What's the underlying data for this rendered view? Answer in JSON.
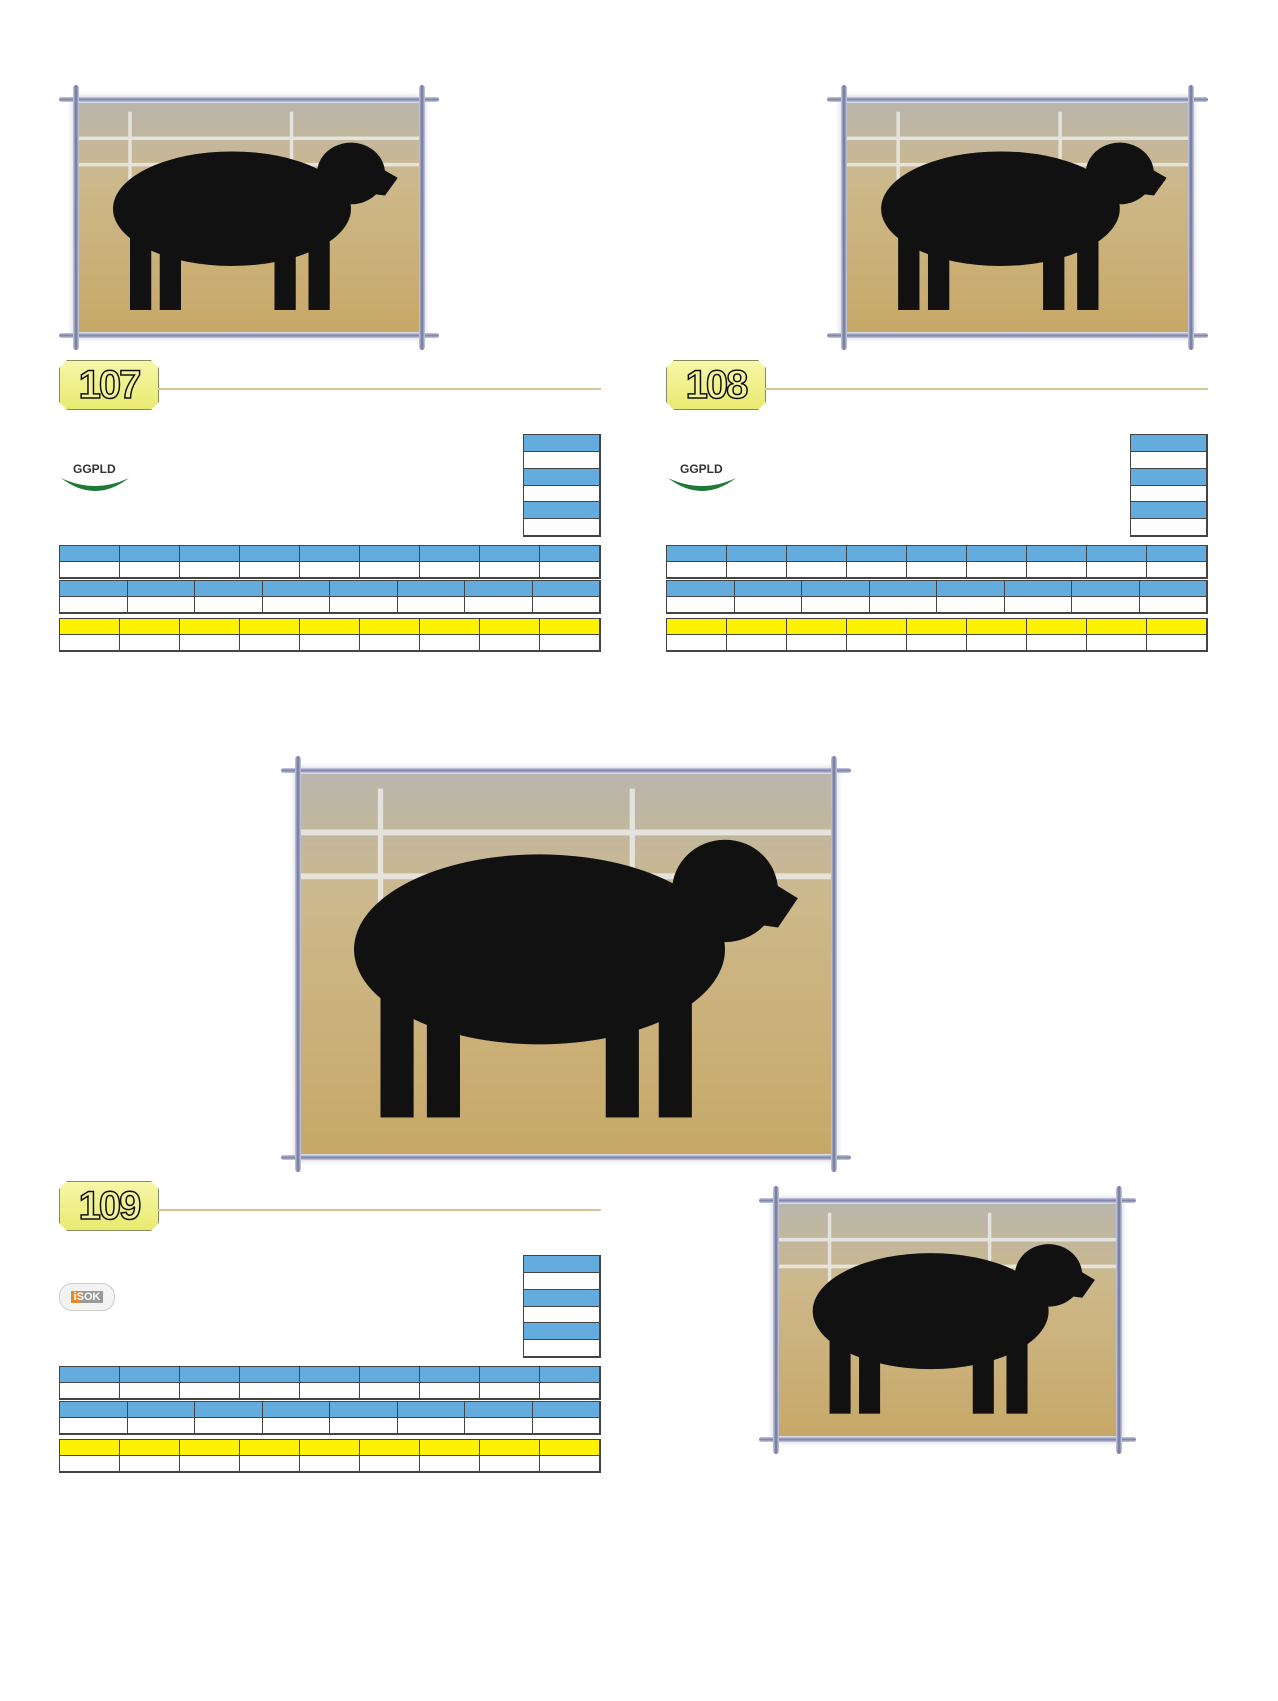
{
  "lots": [
    {
      "lot_number": "107",
      "logo_text": "GGPLD",
      "logo_type": "ggpld"
    },
    {
      "lot_number": "108",
      "logo_text": "GGPLD",
      "logo_type": "ggpld"
    },
    {
      "lot_number": "109",
      "logo_text": "iSOK",
      "logo_type": "isok"
    }
  ],
  "colors": {
    "header_blue": "#64acde",
    "header_yellow": "#fff200",
    "badge": "#f0f08a",
    "rule": "#d8c49a"
  },
  "photos": [
    "bull-photo-lot-107",
    "bull-photo-lot-108",
    "bull-photo-lot-109-main",
    "bull-photo-lot-109-secondary"
  ]
}
